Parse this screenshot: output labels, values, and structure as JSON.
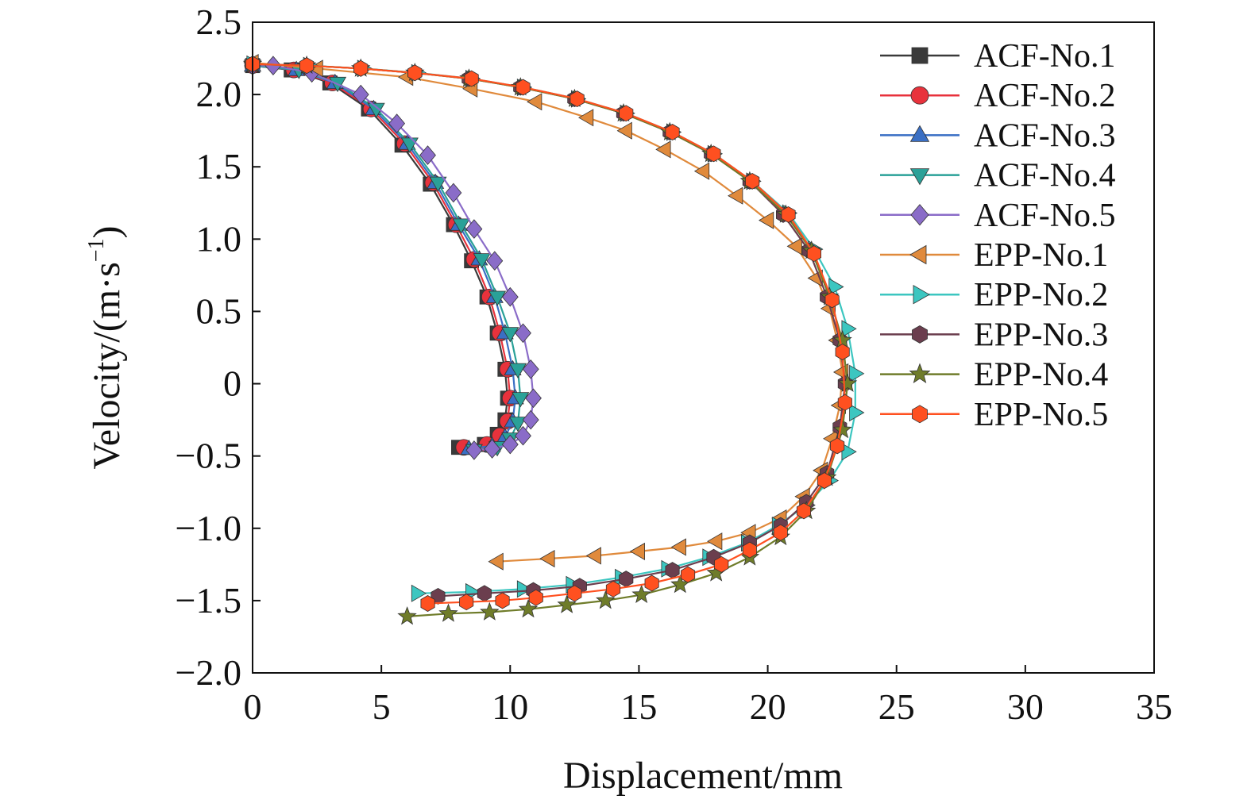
{
  "chart_data": {
    "type": "line",
    "xlabel": "Displacement/mm",
    "ylabel_main": "Velocity/(m·s",
    "ylabel_sup": "−1",
    "ylabel_close": ")",
    "xlim": [
      0,
      35
    ],
    "ylim": [
      -2.0,
      2.5
    ],
    "x_ticks": [
      0,
      5,
      10,
      15,
      20,
      25,
      30,
      35
    ],
    "x_tick_labels": [
      "0",
      "5",
      "10",
      "15",
      "20",
      "25",
      "30",
      "35"
    ],
    "y_ticks": [
      2.5,
      2.0,
      1.5,
      1.0,
      0.5,
      0,
      -0.5,
      -1.0,
      -1.5,
      -2.0
    ],
    "y_tick_labels": [
      "2.5",
      "2.0",
      "1.5",
      "1.0",
      "0.5",
      "0",
      "−0.5",
      "−1.0",
      "−1.5",
      "−2.0"
    ],
    "grid": false,
    "legend_position": "top-right",
    "series": [
      {
        "name": "ACF-No.1",
        "color": "#3a3a3a",
        "marker": "square",
        "points": [
          [
            0,
            2.2
          ],
          [
            1.5,
            2.17
          ],
          [
            3,
            2.08
          ],
          [
            4.5,
            1.9
          ],
          [
            5.8,
            1.65
          ],
          [
            6.9,
            1.38
          ],
          [
            7.8,
            1.1
          ],
          [
            8.5,
            0.85
          ],
          [
            9.1,
            0.6
          ],
          [
            9.5,
            0.35
          ],
          [
            9.8,
            0.1
          ],
          [
            9.9,
            -0.1
          ],
          [
            9.8,
            -0.25
          ],
          [
            9.5,
            -0.35
          ],
          [
            9,
            -0.42
          ],
          [
            8,
            -0.44
          ]
        ]
      },
      {
        "name": "ACF-No.2",
        "color": "#e8323c",
        "marker": "circle",
        "points": [
          [
            0,
            2.2
          ],
          [
            1.6,
            2.17
          ],
          [
            3.1,
            2.08
          ],
          [
            4.6,
            1.9
          ],
          [
            5.9,
            1.66
          ],
          [
            7,
            1.39
          ],
          [
            7.9,
            1.1
          ],
          [
            8.6,
            0.86
          ],
          [
            9.2,
            0.6
          ],
          [
            9.6,
            0.35
          ],
          [
            9.9,
            0.1
          ],
          [
            10,
            -0.1
          ],
          [
            9.9,
            -0.26
          ],
          [
            9.6,
            -0.36
          ],
          [
            9.1,
            -0.42
          ],
          [
            8.2,
            -0.44
          ]
        ]
      },
      {
        "name": "ACF-No.3",
        "color": "#3a6fc4",
        "marker": "triangle-up",
        "points": [
          [
            0,
            2.2
          ],
          [
            1.7,
            2.17
          ],
          [
            3.2,
            2.08
          ],
          [
            4.7,
            1.9
          ],
          [
            6,
            1.66
          ],
          [
            7.1,
            1.39
          ],
          [
            8,
            1.1
          ],
          [
            8.8,
            0.86
          ],
          [
            9.4,
            0.6
          ],
          [
            9.8,
            0.35
          ],
          [
            10.1,
            0.1
          ],
          [
            10.2,
            -0.1
          ],
          [
            10.1,
            -0.26
          ],
          [
            9.8,
            -0.37
          ],
          [
            9.3,
            -0.43
          ],
          [
            8.4,
            -0.45
          ]
        ]
      },
      {
        "name": "ACF-No.4",
        "color": "#2aa198",
        "marker": "triangle-down",
        "points": [
          [
            0,
            2.2
          ],
          [
            1.8,
            2.17
          ],
          [
            3.3,
            2.08
          ],
          [
            4.8,
            1.9
          ],
          [
            6.1,
            1.66
          ],
          [
            7.2,
            1.39
          ],
          [
            8.1,
            1.1
          ],
          [
            8.9,
            0.86
          ],
          [
            9.5,
            0.6
          ],
          [
            10,
            0.35
          ],
          [
            10.3,
            0.1
          ],
          [
            10.4,
            -0.1
          ],
          [
            10.3,
            -0.27
          ],
          [
            10,
            -0.38
          ],
          [
            9.5,
            -0.44
          ],
          [
            8.6,
            -0.46
          ]
        ]
      },
      {
        "name": "ACF-No.5",
        "color": "#8a6cc8",
        "marker": "diamond",
        "points": [
          [
            0,
            2.2
          ],
          [
            0.8,
            2.2
          ],
          [
            2.3,
            2.15
          ],
          [
            4.2,
            2.0
          ],
          [
            5.6,
            1.8
          ],
          [
            6.8,
            1.58
          ],
          [
            7.8,
            1.32
          ],
          [
            8.6,
            1.07
          ],
          [
            9.4,
            0.85
          ],
          [
            10,
            0.6
          ],
          [
            10.5,
            0.35
          ],
          [
            10.8,
            0.1
          ],
          [
            10.9,
            -0.1
          ],
          [
            10.8,
            -0.25
          ],
          [
            10.5,
            -0.36
          ],
          [
            10,
            -0.42
          ],
          [
            9.3,
            -0.45
          ],
          [
            8.6,
            -0.46
          ]
        ]
      },
      {
        "name": "EPP-No.1",
        "color": "#e08a3c",
        "marker": "triangle-left",
        "points": [
          [
            0,
            2.22
          ],
          [
            2.5,
            2.18
          ],
          [
            6,
            2.12
          ],
          [
            8.5,
            2.04
          ],
          [
            11,
            1.95
          ],
          [
            13,
            1.84
          ],
          [
            14.5,
            1.75
          ],
          [
            16,
            1.62
          ],
          [
            17.5,
            1.47
          ],
          [
            18.8,
            1.3
          ],
          [
            20,
            1.13
          ],
          [
            21.1,
            0.95
          ],
          [
            21.9,
            0.73
          ],
          [
            22.4,
            0.52
          ],
          [
            22.7,
            0.3
          ],
          [
            22.9,
            0.08
          ],
          [
            22.8,
            -0.15
          ],
          [
            22.5,
            -0.38
          ],
          [
            22.1,
            -0.6
          ],
          [
            21.4,
            -0.78
          ],
          [
            20.5,
            -0.93
          ],
          [
            19.3,
            -1.03
          ],
          [
            18,
            -1.09
          ],
          [
            16.6,
            -1.13
          ],
          [
            15,
            -1.16
          ],
          [
            13.3,
            -1.19
          ],
          [
            11.5,
            -1.21
          ],
          [
            9.5,
            -1.23
          ]
        ]
      },
      {
        "name": "EPP-No.2",
        "color": "#3cc6c0",
        "marker": "triangle-right",
        "points": [
          [
            0,
            2.21
          ],
          [
            2.2,
            2.2
          ],
          [
            4.3,
            2.18
          ],
          [
            6.4,
            2.15
          ],
          [
            8.5,
            2.11
          ],
          [
            10.5,
            2.05
          ],
          [
            12.6,
            1.97
          ],
          [
            14.5,
            1.87
          ],
          [
            16.3,
            1.74
          ],
          [
            17.9,
            1.59
          ],
          [
            19.4,
            1.4
          ],
          [
            20.8,
            1.18
          ],
          [
            21.8,
            0.93
          ],
          [
            22.6,
            0.67
          ],
          [
            23.1,
            0.38
          ],
          [
            23.4,
            0.07
          ],
          [
            23.4,
            -0.2
          ],
          [
            23.1,
            -0.47
          ],
          [
            22.4,
            -0.67
          ],
          [
            21.5,
            -0.84
          ],
          [
            20.4,
            -0.98
          ],
          [
            19.2,
            -1.1
          ],
          [
            17.7,
            -1.2
          ],
          [
            16.1,
            -1.28
          ],
          [
            14.3,
            -1.34
          ],
          [
            12.4,
            -1.39
          ],
          [
            10.5,
            -1.42
          ],
          [
            8.5,
            -1.44
          ],
          [
            6.4,
            -1.45
          ]
        ]
      },
      {
        "name": "EPP-No.3",
        "color": "#6b3e4e",
        "marker": "hexagon",
        "points": [
          [
            0,
            2.21
          ],
          [
            2.1,
            2.2
          ],
          [
            4.2,
            2.18
          ],
          [
            6.3,
            2.15
          ],
          [
            8.4,
            2.11
          ],
          [
            10.4,
            2.05
          ],
          [
            12.5,
            1.97
          ],
          [
            14.4,
            1.87
          ],
          [
            16.2,
            1.74
          ],
          [
            17.8,
            1.59
          ],
          [
            19.3,
            1.4
          ],
          [
            20.6,
            1.17
          ],
          [
            21.6,
            0.92
          ],
          [
            22.3,
            0.6
          ],
          [
            22.8,
            0.3
          ],
          [
            23,
            0
          ],
          [
            22.8,
            -0.3
          ],
          [
            22.3,
            -0.62
          ],
          [
            21.5,
            -0.82
          ],
          [
            20.5,
            -0.98
          ],
          [
            19.3,
            -1.1
          ],
          [
            17.9,
            -1.2
          ],
          [
            16.3,
            -1.29
          ],
          [
            14.5,
            -1.35
          ],
          [
            12.7,
            -1.4
          ],
          [
            10.9,
            -1.43
          ],
          [
            9,
            -1.45
          ],
          [
            7.2,
            -1.47
          ]
        ]
      },
      {
        "name": "EPP-No.4",
        "color": "#6f7c2a",
        "marker": "star",
        "points": [
          [
            0,
            2.21
          ],
          [
            2.1,
            2.2
          ],
          [
            4.2,
            2.18
          ],
          [
            6.3,
            2.15
          ],
          [
            8.4,
            2.11
          ],
          [
            10.4,
            2.05
          ],
          [
            12.5,
            1.97
          ],
          [
            14.4,
            1.87
          ],
          [
            16.2,
            1.74
          ],
          [
            17.8,
            1.59
          ],
          [
            19.3,
            1.4
          ],
          [
            20.7,
            1.17
          ],
          [
            21.7,
            0.92
          ],
          [
            22.4,
            0.6
          ],
          [
            22.9,
            0.3
          ],
          [
            23.1,
            0
          ],
          [
            22.9,
            -0.32
          ],
          [
            22.3,
            -0.65
          ],
          [
            21.5,
            -0.88
          ],
          [
            20.5,
            -1.06
          ],
          [
            19.3,
            -1.2
          ],
          [
            18,
            -1.31
          ],
          [
            16.6,
            -1.39
          ],
          [
            15.1,
            -1.46
          ],
          [
            13.7,
            -1.5
          ],
          [
            12.2,
            -1.53
          ],
          [
            10.7,
            -1.56
          ],
          [
            9.2,
            -1.58
          ],
          [
            7.6,
            -1.59
          ],
          [
            6,
            -1.61
          ]
        ]
      },
      {
        "name": "EPP-No.5",
        "color": "#ff5020",
        "marker": "hexagon",
        "points": [
          [
            0,
            2.21
          ],
          [
            2.1,
            2.2
          ],
          [
            4.2,
            2.18
          ],
          [
            6.3,
            2.15
          ],
          [
            8.5,
            2.11
          ],
          [
            10.5,
            2.05
          ],
          [
            12.6,
            1.97
          ],
          [
            14.5,
            1.87
          ],
          [
            16.3,
            1.74
          ],
          [
            17.9,
            1.59
          ],
          [
            19.4,
            1.4
          ],
          [
            20.8,
            1.17
          ],
          [
            21.8,
            0.9
          ],
          [
            22.5,
            0.58
          ],
          [
            22.9,
            0.22
          ],
          [
            23,
            -0.13
          ],
          [
            22.7,
            -0.43
          ],
          [
            22.2,
            -0.67
          ],
          [
            21.4,
            -0.88
          ],
          [
            20.5,
            -1.03
          ],
          [
            19.3,
            -1.15
          ],
          [
            18.2,
            -1.25
          ],
          [
            16.9,
            -1.32
          ],
          [
            15.5,
            -1.38
          ],
          [
            14,
            -1.42
          ],
          [
            12.5,
            -1.45
          ],
          [
            11,
            -1.48
          ],
          [
            9.7,
            -1.5
          ],
          [
            8.3,
            -1.51
          ],
          [
            6.8,
            -1.52
          ]
        ]
      }
    ]
  }
}
